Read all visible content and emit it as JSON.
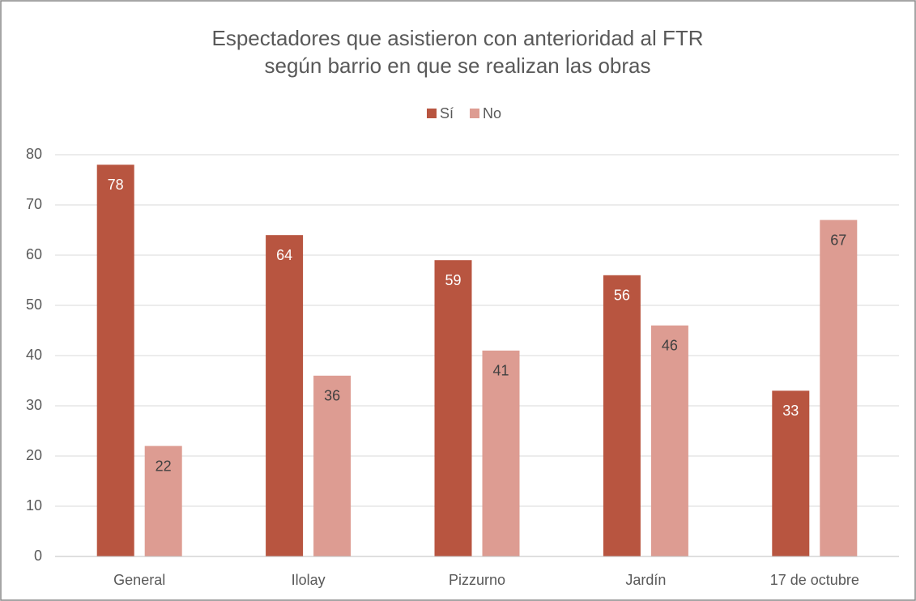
{
  "chart_data": {
    "type": "bar",
    "title": "Espectadores que asistieron con anterioridad al FTR según barrio en que se realizan las obras",
    "categories": [
      "General",
      "Ilolay",
      "Pizzurno",
      "Jardín",
      "17 de octubre"
    ],
    "series": [
      {
        "name": "Sí",
        "color": "#b85540",
        "label_color": "#ffffff",
        "values": [
          78,
          64,
          59,
          56,
          33
        ]
      },
      {
        "name": "No",
        "color": "#dd9c92",
        "label_color": "#404040",
        "values": [
          22,
          36,
          41,
          46,
          67
        ]
      }
    ],
    "ylim": [
      0,
      80
    ],
    "yticks": [
      0,
      10,
      20,
      30,
      40,
      50,
      60,
      70,
      80
    ],
    "grid": true,
    "legend": "top"
  }
}
